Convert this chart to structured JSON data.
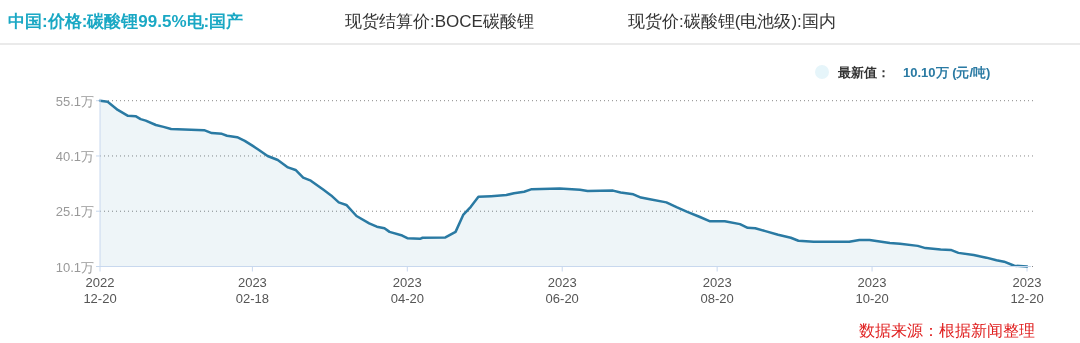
{
  "chart_data": {
    "type": "area",
    "title": "中国:价格:碳酸锂99.5%电:国产",
    "annotations": [
      "现货结算价:BOCE碳酸锂",
      "现货价:碳酸锂(电池级):国内",
      "最新值：",
      "10.10万 (元/吨)",
      "数据来源：根据新闻整理"
    ],
    "color": "#2a7aa3",
    "x": [
      "2022-12-20",
      "2022-12-23",
      "2022-12-27",
      "2022-12-31",
      "2023-01-03",
      "2023-01-05",
      "2023-01-07",
      "2023-01-11",
      "2023-01-14",
      "2023-01-17",
      "2023-01-30",
      "2023-02-02",
      "2023-02-06",
      "2023-02-08",
      "2023-02-12",
      "2023-02-15",
      "2023-02-18",
      "2023-02-20",
      "2023-02-24",
      "2023-02-28",
      "2023-03-04",
      "2023-03-07",
      "2023-03-10",
      "2023-03-13",
      "2023-03-18",
      "2023-03-21",
      "2023-03-24",
      "2023-03-27",
      "2023-03-31",
      "2023-04-05",
      "2023-04-08",
      "2023-04-11",
      "2023-04-13",
      "2023-04-18",
      "2023-04-20",
      "2023-04-25",
      "2023-04-26",
      "2023-05-05",
      "2023-05-09",
      "2023-05-12",
      "2023-05-15",
      "2023-05-18",
      "2023-05-23",
      "2023-05-29",
      "2023-06-01",
      "2023-06-05",
      "2023-06-08",
      "2023-06-19",
      "2023-06-27",
      "2023-06-30",
      "2023-07-10",
      "2023-07-13",
      "2023-07-18",
      "2023-07-21",
      "2023-07-24",
      "2023-07-31",
      "2023-08-04",
      "2023-08-08",
      "2023-08-13",
      "2023-08-17",
      "2023-08-23",
      "2023-08-29",
      "2023-09-01",
      "2023-09-04",
      "2023-09-08",
      "2023-09-13",
      "2023-09-18",
      "2023-09-21",
      "2023-09-27",
      "2023-10-11",
      "2023-10-15",
      "2023-10-19",
      "2023-10-27",
      "2023-10-31",
      "2023-11-07",
      "2023-11-10",
      "2023-11-16",
      "2023-11-20",
      "2023-11-23",
      "2023-11-29",
      "2023-12-04",
      "2023-12-08",
      "2023-12-11",
      "2023-12-15",
      "2023-12-20"
    ],
    "values": [
      55.1,
      54.8,
      52.6,
      51.0,
      50.9,
      50.1,
      49.7,
      48.5,
      48.0,
      47.4,
      47.1,
      46.3,
      46.1,
      45.6,
      45.2,
      44.2,
      42.9,
      42.0,
      40.1,
      39.0,
      37.0,
      36.3,
      34.2,
      33.4,
      30.9,
      29.4,
      27.5,
      26.8,
      23.8,
      21.8,
      20.9,
      20.5,
      19.5,
      18.5,
      17.8,
      17.6,
      17.9,
      18.0,
      19.5,
      24.1,
      26.3,
      29.0,
      29.2,
      29.5,
      30.0,
      30.4,
      31.1,
      31.3,
      30.9,
      30.6,
      30.7,
      30.2,
      29.7,
      28.8,
      28.4,
      27.5,
      26.2,
      25.0,
      23.6,
      22.4,
      22.4,
      21.6,
      20.6,
      20.5,
      19.7,
      18.7,
      17.9,
      17.1,
      16.8,
      16.8,
      17.3,
      17.3,
      16.5,
      16.3,
      15.7,
      15.1,
      14.7,
      14.6,
      13.8,
      13.2,
      12.5,
      11.8,
      11.4,
      10.3,
      10.1
    ],
    "ylim": [
      10.1,
      55.1
    ],
    "yticks": [
      {
        "value": 10.1,
        "label": "10.1万"
      },
      {
        "value": 25.1,
        "label": "25.1万"
      },
      {
        "value": 40.1,
        "label": "40.1万"
      },
      {
        "value": 55.1,
        "label": "55.1万"
      }
    ],
    "xlim": [
      "2022-12-20",
      "2023-12-20"
    ],
    "xticks": [
      {
        "value": "2022-12-20",
        "label": "2022\n12-20"
      },
      {
        "value": "2023-02-18",
        "label": "2023\n02-18"
      },
      {
        "value": "2023-04-20",
        "label": "2023\n04-20"
      },
      {
        "value": "2023-06-20",
        "label": "2023\n06-20"
      },
      {
        "value": "2023-08-20",
        "label": "2023\n08-20"
      },
      {
        "value": "2023-10-20",
        "label": "2023\n10-20"
      },
      {
        "value": "2023-12-20",
        "label": "2023\n12-20"
      }
    ],
    "grid": "y"
  }
}
